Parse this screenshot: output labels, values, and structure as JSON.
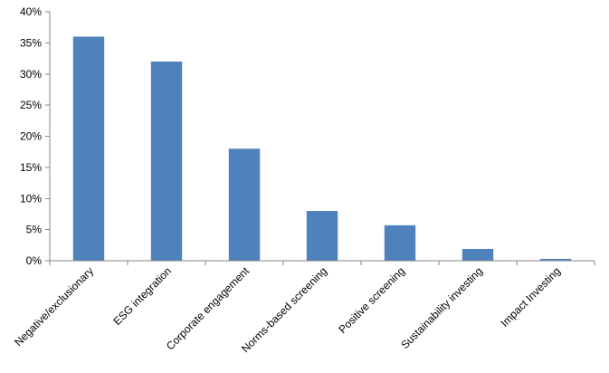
{
  "chart_data": {
    "type": "bar",
    "categories": [
      "Negative/exclusionary",
      "ESG integration",
      "Corporate engagement",
      "Norms-based screening",
      "Positive screening",
      "Sustainability investing",
      "Impact Investing"
    ],
    "values": [
      36,
      32,
      18,
      8,
      5.7,
      1.9,
      0.3
    ],
    "title": "",
    "xlabel": "",
    "ylabel": "",
    "ylim": [
      0,
      40
    ],
    "yticks": [
      "0%",
      "5%",
      "10%",
      "15%",
      "20%",
      "25%",
      "30%",
      "35%",
      "40%"
    ],
    "grid": false,
    "legend": "none",
    "bar_color": "#4F81BD"
  }
}
